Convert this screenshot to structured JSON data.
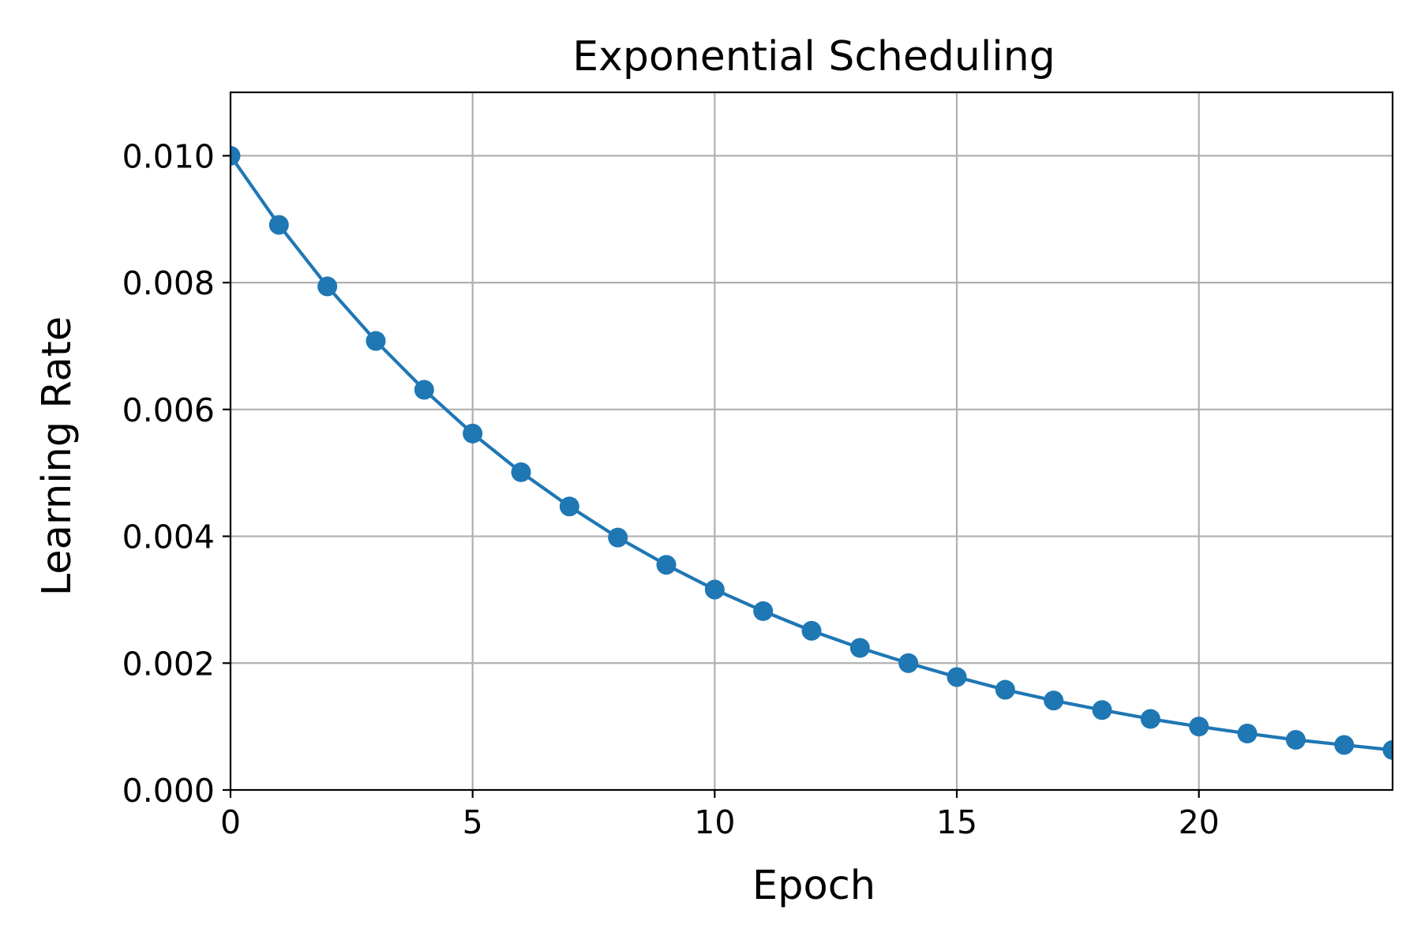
{
  "chart_data": {
    "type": "line",
    "title": "Exponential Scheduling",
    "xlabel": "Epoch",
    "ylabel": "Learning Rate",
    "xlim": [
      0,
      24
    ],
    "ylim": [
      0,
      0.011
    ],
    "grid": true,
    "x_ticks": [
      0,
      5,
      10,
      15,
      20
    ],
    "x_tick_labels": [
      "0",
      "5",
      "10",
      "15",
      "20"
    ],
    "y_ticks": [
      0.0,
      0.002,
      0.004,
      0.006,
      0.008,
      0.01
    ],
    "y_tick_labels": [
      "0.000",
      "0.002",
      "0.004",
      "0.006",
      "0.008",
      "0.010"
    ],
    "series": [
      {
        "color": "#1f77b4",
        "marker": "circle",
        "x": [
          0,
          1,
          2,
          3,
          4,
          5,
          6,
          7,
          8,
          9,
          10,
          11,
          12,
          13,
          14,
          15,
          16,
          17,
          18,
          19,
          20,
          21,
          22,
          23,
          24
        ],
        "values": [
          0.01,
          0.00891,
          0.00794,
          0.00708,
          0.00631,
          0.00562,
          0.00501,
          0.00447,
          0.00398,
          0.00355,
          0.00316,
          0.00282,
          0.00251,
          0.00224,
          0.002,
          0.00178,
          0.00158,
          0.00141,
          0.00126,
          0.00112,
          0.001,
          0.00089,
          0.00079,
          0.00071,
          0.00063
        ]
      }
    ]
  }
}
